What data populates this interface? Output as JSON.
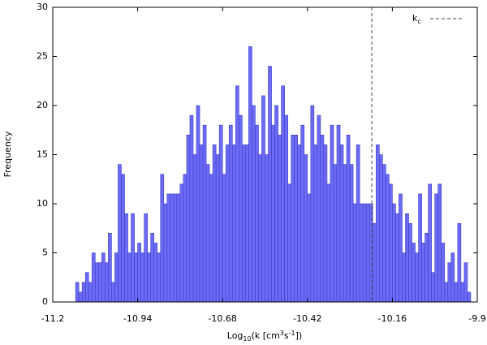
{
  "chart_data": {
    "type": "histogram",
    "ylabel": "Frequency",
    "xlabel_parts": [
      {
        "text": "Log"
      },
      {
        "text": "10",
        "sub": true
      },
      {
        "text": "(k [cm"
      },
      {
        "text": "3",
        "sup": true
      },
      {
        "text": "s"
      },
      {
        "text": "-1",
        "sup": true
      },
      {
        "text": "])"
      }
    ],
    "bins": [
      -11.13,
      -11.12,
      -11.11,
      -11.1,
      -11.09,
      -11.08,
      -11.07,
      -11.06,
      -11.05,
      -11.04,
      -11.03,
      -11.02,
      -11.01,
      -11,
      -10.99,
      -10.98,
      -10.97,
      -10.96,
      -10.95,
      -10.94,
      -10.93,
      -10.92,
      -10.91,
      -10.9,
      -10.89,
      -10.88,
      -10.87,
      -10.86,
      -10.85,
      -10.84,
      -10.83,
      -10.82,
      -10.81,
      -10.8,
      -10.79,
      -10.78,
      -10.77,
      -10.76,
      -10.75,
      -10.74,
      -10.73,
      -10.72,
      -10.71,
      -10.7,
      -10.69,
      -10.68,
      -10.67,
      -10.66,
      -10.65,
      -10.64,
      -10.63,
      -10.62,
      -10.61,
      -10.6,
      -10.59,
      -10.58,
      -10.57,
      -10.56,
      -10.55,
      -10.54,
      -10.53,
      -10.52,
      -10.51,
      -10.5,
      -10.49,
      -10.48,
      -10.47,
      -10.46,
      -10.45,
      -10.44,
      -10.43,
      -10.42,
      -10.41,
      -10.4,
      -10.39,
      -10.38,
      -10.37,
      -10.36,
      -10.35,
      -10.34,
      -10.33,
      -10.32,
      -10.31,
      -10.3,
      -10.29,
      -10.28,
      -10.27,
      -10.26,
      -10.25,
      -10.24,
      -10.23,
      -10.22,
      -10.21,
      -10.2,
      -10.19,
      -10.18,
      -10.17,
      -10.16,
      -10.15,
      -10.14,
      -10.13,
      -10.12,
      -10.11,
      -10.1,
      -10.09,
      -10.08,
      -10.07,
      -10.06,
      -10.05,
      -10.04,
      -10.03,
      -10.02,
      -10.01,
      -10,
      -9.99,
      -9.98,
      -9.97,
      -9.96,
      -9.95,
      -9.94,
      -9.93,
      -9.92
    ],
    "values": [
      2,
      1,
      2,
      3,
      2,
      5,
      4,
      4,
      5,
      4,
      7,
      2,
      5,
      14,
      13,
      9,
      5,
      9,
      5,
      6,
      5,
      9,
      5,
      7,
      6,
      5,
      13,
      10,
      11,
      11,
      11,
      11,
      12,
      13,
      17,
      19,
      15,
      20,
      16,
      18,
      14,
      13,
      16,
      15,
      18,
      13,
      16,
      18,
      16,
      22,
      19,
      16,
      16,
      26,
      20,
      18,
      15,
      21,
      15,
      24,
      18,
      20,
      17,
      22,
      19,
      12,
      17,
      17,
      16,
      18,
      15,
      11,
      20,
      16,
      19,
      17,
      16,
      12,
      18,
      14,
      18,
      16,
      14,
      17,
      14,
      10,
      16,
      10,
      10,
      10,
      10,
      8,
      16,
      15,
      14,
      13,
      12,
      10,
      9,
      11,
      5,
      9,
      8,
      6,
      5,
      11,
      6,
      7,
      12,
      3,
      11,
      12,
      6,
      2,
      4,
      5,
      2,
      8,
      2,
      4,
      1
    ],
    "color": "#6b6bf5",
    "edgecolor": "#3c3cc8",
    "xlim": [
      -11.2,
      -9.9
    ],
    "xticks": [
      -11.2,
      -10.94,
      -10.68,
      -10.42,
      -10.16,
      -9.9
    ],
    "ylim": [
      0,
      30
    ],
    "yticks": [
      0,
      5,
      10,
      15,
      20,
      25,
      30
    ],
    "reference_line": {
      "x": -10.223,
      "label_main": "k",
      "label_sub": "c",
      "color": "#444444"
    },
    "legend": "upper right"
  }
}
